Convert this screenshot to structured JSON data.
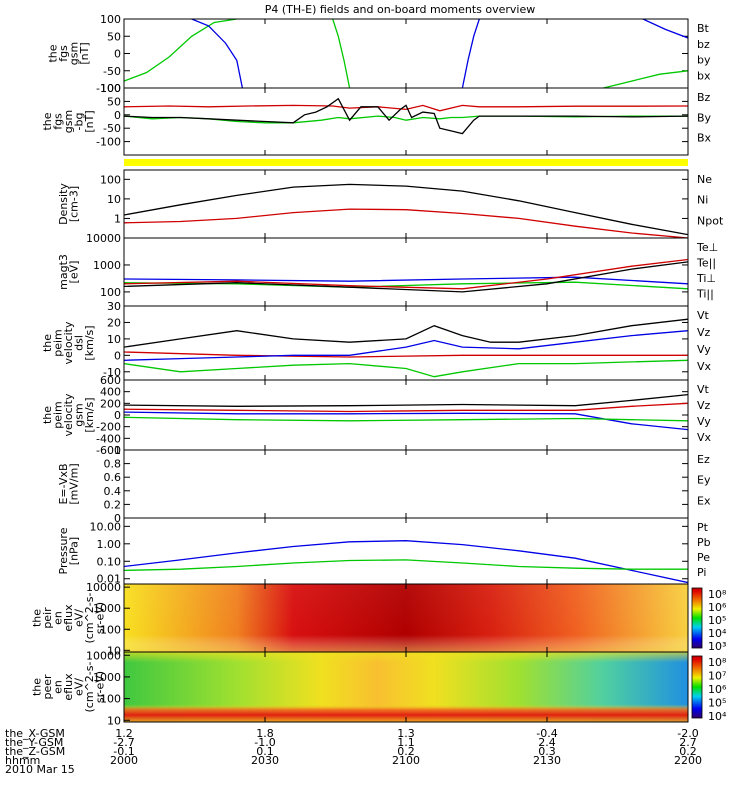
{
  "title": "P4 (TH-E) fields and on-board moments overview",
  "colors": {
    "black": "#000000",
    "red": "#d00000",
    "green": "#00c800",
    "blue": "#0000e6",
    "yellow": "#ffff00"
  },
  "chart_data": [
    {
      "type": "line",
      "ylabel": [
        "the",
        "fgs",
        "gsm",
        "[nT]"
      ],
      "ylim": [
        -100,
        100
      ],
      "yticks": [
        100,
        50,
        0,
        -50,
        -100
      ],
      "legend": [
        {
          "name": "Bt",
          "color": "black"
        },
        {
          "name": "bz",
          "color": "red"
        },
        {
          "name": "by",
          "color": "green"
        },
        {
          "name": "bx",
          "color": "blue"
        }
      ],
      "series": [
        {
          "name": "by",
          "color": "green",
          "x": [
            0,
            4,
            8,
            12,
            16,
            20
          ],
          "y": [
            -80,
            -55,
            -10,
            50,
            90,
            100
          ]
        },
        {
          "name": "bx",
          "color": "blue",
          "x": [
            12,
            15,
            18,
            20,
            21
          ],
          "y": [
            100,
            80,
            30,
            -20,
            -100
          ]
        },
        {
          "name": "by",
          "color": "green",
          "x": [
            37,
            38,
            39,
            40
          ],
          "y": [
            100,
            50,
            -20,
            -100
          ]
        },
        {
          "name": "bx",
          "color": "blue",
          "x": [
            60,
            61,
            62,
            63
          ],
          "y": [
            -100,
            -20,
            50,
            100
          ]
        },
        {
          "name": "by",
          "color": "green",
          "x": [
            85,
            90,
            95,
            100
          ],
          "y": [
            -100,
            -80,
            -60,
            -50
          ]
        },
        {
          "name": "bx",
          "color": "blue",
          "x": [
            92,
            96,
            100
          ],
          "y": [
            100,
            70,
            45
          ]
        }
      ]
    },
    {
      "type": "line",
      "ylabel": [
        "the",
        "fgs",
        "gsm",
        "-bg",
        "[nT]"
      ],
      "ylim": [
        -150,
        100
      ],
      "yticks": [
        100,
        50,
        0,
        -50,
        -100
      ],
      "legend": [
        {
          "name": "Bz",
          "color": "red"
        },
        {
          "name": "By",
          "color": "green"
        },
        {
          "name": "Bx",
          "color": "black"
        }
      ],
      "series": [
        {
          "name": "Bz",
          "color": "red",
          "x": [
            0,
            8,
            15,
            22,
            30,
            37,
            40,
            45,
            50,
            53,
            56,
            60,
            63,
            70,
            80,
            90,
            100
          ],
          "y": [
            30,
            33,
            30,
            33,
            35,
            33,
            25,
            30,
            20,
            35,
            15,
            35,
            30,
            30,
            32,
            32,
            33
          ]
        },
        {
          "name": "By",
          "color": "green",
          "x": [
            0,
            5,
            10,
            15,
            20,
            25,
            30,
            35,
            38,
            40,
            45,
            48,
            50,
            53,
            56,
            58,
            60,
            63,
            70,
            80,
            90,
            100
          ],
          "y": [
            -5,
            -15,
            -10,
            -15,
            -25,
            -30,
            -30,
            -20,
            -10,
            -15,
            -5,
            -10,
            -20,
            -10,
            -15,
            -10,
            -10,
            -5,
            -5,
            -8,
            -5,
            -5
          ]
        },
        {
          "name": "Bx",
          "color": "black",
          "x": [
            0,
            5,
            10,
            15,
            20,
            25,
            30,
            32,
            34,
            36,
            38,
            40,
            42,
            45,
            47,
            49,
            50,
            51,
            53,
            55,
            56,
            58,
            60,
            62,
            63,
            65,
            70,
            80,
            90,
            100
          ],
          "y": [
            -5,
            -10,
            -10,
            -15,
            -20,
            -25,
            -30,
            0,
            10,
            30,
            60,
            -20,
            30,
            30,
            -20,
            20,
            35,
            -10,
            10,
            5,
            -50,
            -60,
            -70,
            -20,
            -5,
            -5,
            -5,
            -5,
            -8,
            -5
          ]
        }
      ]
    },
    {
      "type": "line",
      "ylabel": [
        "Density",
        "[cm-3]"
      ],
      "ylog": true,
      "ylim": [
        0.1,
        300
      ],
      "yticks": [
        100,
        10,
        1
      ],
      "legend": [
        {
          "name": "Ne",
          "color": "red"
        },
        {
          "name": "Ni",
          "color": "black"
        },
        {
          "name": "Npot",
          "color": "blue"
        }
      ],
      "series": [
        {
          "name": "Ni",
          "color": "black",
          "x": [
            0,
            10,
            20,
            30,
            40,
            50,
            60,
            70,
            80,
            90,
            100
          ],
          "y": [
            1.5,
            5,
            15,
            40,
            55,
            45,
            25,
            8,
            2,
            0.5,
            0.15
          ]
        },
        {
          "name": "Ne",
          "color": "red",
          "x": [
            0,
            10,
            20,
            30,
            40,
            50,
            60,
            70,
            80,
            90,
            100
          ],
          "y": [
            0.6,
            0.7,
            1,
            2,
            3,
            2.8,
            1.8,
            1,
            0.4,
            0.18,
            0.1
          ]
        }
      ]
    },
    {
      "type": "line",
      "ylabel": [
        "magt3",
        "[eV]"
      ],
      "ylog": true,
      "ylim": [
        30,
        10000
      ],
      "yticks": [
        10000,
        1000,
        100
      ],
      "legend": [
        {
          "name": "Te⊥",
          "color": "red"
        },
        {
          "name": "Te||",
          "color": "black"
        },
        {
          "name": "Ti⊥",
          "color": "blue"
        },
        {
          "name": "Ti||",
          "color": "green"
        }
      ],
      "series": [
        {
          "name": "Ti⊥",
          "color": "blue",
          "x": [
            0,
            20,
            40,
            60,
            80,
            100
          ],
          "y": [
            300,
            280,
            250,
            300,
            350,
            200
          ]
        },
        {
          "name": "Ti||",
          "color": "green",
          "x": [
            0,
            20,
            40,
            60,
            80,
            100
          ],
          "y": [
            220,
            200,
            150,
            200,
            230,
            130
          ]
        },
        {
          "name": "Te||",
          "color": "black",
          "x": [
            0,
            20,
            40,
            60,
            75,
            90,
            100
          ],
          "y": [
            160,
            220,
            150,
            100,
            200,
            700,
            1300
          ]
        },
        {
          "name": "Te⊥",
          "color": "red",
          "x": [
            0,
            20,
            40,
            60,
            75,
            90,
            100
          ],
          "y": [
            200,
            250,
            170,
            130,
            300,
            900,
            1600
          ]
        }
      ]
    },
    {
      "type": "line",
      "ylabel": [
        "the",
        "peim",
        "velocity",
        "dsl",
        "[km/s]"
      ],
      "ylim": [
        -15,
        30
      ],
      "yticks": [
        30,
        20,
        10,
        0,
        -10
      ],
      "legend": [
        {
          "name": "Vt",
          "color": "black"
        },
        {
          "name": "Vz",
          "color": "red"
        },
        {
          "name": "Vy",
          "color": "green"
        },
        {
          "name": "Vx",
          "color": "blue"
        }
      ],
      "series": [
        {
          "name": "Vt",
          "color": "black",
          "x": [
            0,
            10,
            20,
            30,
            40,
            50,
            55,
            60,
            65,
            70,
            80,
            90,
            100
          ],
          "y": [
            5,
            10,
            15,
            10,
            8,
            10,
            18,
            12,
            8,
            8,
            12,
            18,
            22
          ]
        },
        {
          "name": "Vz",
          "color": "red",
          "x": [
            0,
            20,
            40,
            60,
            80,
            100
          ],
          "y": [
            2,
            0,
            -1,
            0,
            0,
            0
          ]
        },
        {
          "name": "Vx",
          "color": "blue",
          "x": [
            0,
            10,
            20,
            30,
            40,
            50,
            55,
            60,
            70,
            80,
            90,
            100
          ],
          "y": [
            -3,
            -2,
            -1,
            0,
            0,
            5,
            9,
            5,
            4,
            8,
            12,
            15
          ]
        },
        {
          "name": "Vy",
          "color": "green",
          "x": [
            0,
            10,
            20,
            30,
            40,
            50,
            55,
            60,
            70,
            80,
            90,
            100
          ],
          "y": [
            -5,
            -10,
            -8,
            -6,
            -5,
            -8,
            -13,
            -10,
            -5,
            -5,
            -4,
            -3
          ]
        }
      ]
    },
    {
      "type": "line",
      "ylabel": [
        "the",
        "peim",
        "velocity",
        "gsm",
        "[km/s]"
      ],
      "ylim": [
        -600,
        600
      ],
      "yticks": [
        600,
        400,
        200,
        0,
        -200,
        -400,
        -600
      ],
      "legend": [
        {
          "name": "Vt",
          "color": "black"
        },
        {
          "name": "Vz",
          "color": "red"
        },
        {
          "name": "Vy",
          "color": "green"
        },
        {
          "name": "Vx",
          "color": "blue"
        }
      ],
      "series": [
        {
          "name": "Vt",
          "color": "black",
          "x": [
            0,
            20,
            40,
            60,
            80,
            90,
            100
          ],
          "y": [
            170,
            150,
            160,
            180,
            160,
            250,
            350
          ]
        },
        {
          "name": "Vz",
          "color": "red",
          "x": [
            0,
            20,
            40,
            60,
            80,
            90,
            100
          ],
          "y": [
            100,
            80,
            60,
            80,
            80,
            150,
            200
          ]
        },
        {
          "name": "Vx",
          "color": "blue",
          "x": [
            0,
            20,
            40,
            60,
            80,
            90,
            100
          ],
          "y": [
            50,
            20,
            20,
            30,
            20,
            -150,
            -250
          ]
        },
        {
          "name": "Vy",
          "color": "green",
          "x": [
            0,
            20,
            40,
            60,
            80,
            90,
            100
          ],
          "y": [
            -40,
            -80,
            -100,
            -80,
            -60,
            -80,
            -100
          ]
        }
      ]
    },
    {
      "type": "line",
      "ylabel": [
        "E=-VxB",
        "[mV/m]"
      ],
      "ylim": [
        0,
        1
      ],
      "yticks": [
        1.0,
        0.8,
        0.6,
        0.4,
        0.2,
        0.0
      ],
      "legend": [
        {
          "name": "Ez",
          "color": "red"
        },
        {
          "name": "Ey",
          "color": "green"
        },
        {
          "name": "Ex",
          "color": "blue"
        }
      ],
      "series": []
    },
    {
      "type": "line",
      "ylabel": [
        "Pressure",
        "[nPa]"
      ],
      "ylog": true,
      "ylim": [
        0.005,
        30
      ],
      "yticks": [
        "10.00",
        "1.00",
        "0.10",
        "0.01"
      ],
      "legend": [
        {
          "name": "Pt",
          "color": "black"
        },
        {
          "name": "Pb",
          "color": "red"
        },
        {
          "name": "Pe",
          "color": "green"
        },
        {
          "name": "Pi",
          "color": "blue"
        }
      ],
      "series": [
        {
          "name": "Pi",
          "color": "blue",
          "x": [
            0,
            10,
            20,
            30,
            40,
            50,
            60,
            70,
            80,
            90,
            100
          ],
          "y": [
            0.05,
            0.12,
            0.3,
            0.7,
            1.3,
            1.5,
            0.9,
            0.4,
            0.15,
            0.03,
            0.006
          ]
        },
        {
          "name": "Pe",
          "color": "green",
          "x": [
            0,
            10,
            20,
            30,
            40,
            50,
            60,
            70,
            80,
            90,
            100
          ],
          "y": [
            0.03,
            0.035,
            0.05,
            0.08,
            0.11,
            0.12,
            0.08,
            0.05,
            0.04,
            0.035,
            0.035
          ]
        }
      ]
    },
    {
      "type": "heatmap",
      "ylabel": [
        "the",
        "peir",
        "en",
        "eflux",
        "eV/",
        "(cm^2-s-",
        "sr-eV)"
      ],
      "ylog": true,
      "yticks": [
        10000,
        1000,
        100,
        10
      ],
      "colorbar_ticks": [
        "10⁸",
        "10⁶",
        "10⁵",
        "10⁴",
        "10³"
      ]
    },
    {
      "type": "heatmap",
      "ylabel": [
        "the",
        "peer",
        "en",
        "eflux",
        "eV/",
        "(cm^2-s-",
        "sr-eV)"
      ],
      "ylog": true,
      "yticks": [
        10000,
        1000,
        100,
        10
      ],
      "colorbar_ticks": [
        "10⁸",
        "10⁷",
        "10⁶",
        "10⁵",
        "10⁴"
      ]
    }
  ],
  "x_axis": {
    "row_labels": [
      "the_X-GSM",
      "the_Y-GSM",
      "the_Z-GSM",
      "hhmm",
      "2010 Mar 15"
    ],
    "columns": [
      {
        "x": "1.2",
        "y": "-2.7",
        "z": "-0.1",
        "t": "2000"
      },
      {
        "x": "1.8",
        "y": "-1.0",
        "z": "0.1",
        "t": "2030"
      },
      {
        "x": "1.3",
        "y": "1.1",
        "z": "0.2",
        "t": "2100"
      },
      {
        "x": "-0.4",
        "y": "2.4",
        "z": "0.3",
        "t": "2130"
      },
      {
        "x": "-2.0",
        "y": "2.7",
        "z": "0.2",
        "t": "2200"
      }
    ]
  }
}
